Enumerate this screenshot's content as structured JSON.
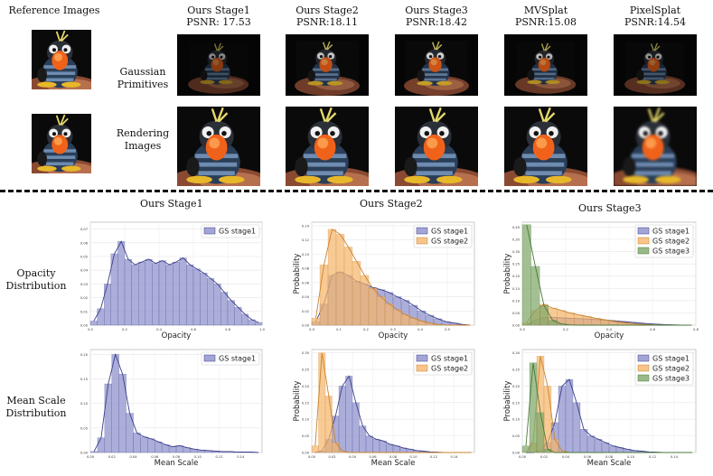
{
  "top": {
    "reference_label": "Reference Images",
    "columns": [
      {
        "name": "Ours Stage1",
        "psnr": "PSNR: 17.53"
      },
      {
        "name": "Ours Stage2",
        "psnr": "PSNR:18.11"
      },
      {
        "name": "Ours Stage3",
        "psnr": "PSNR:18.42"
      },
      {
        "name": "MVSplat",
        "psnr": "PSNR:15.08"
      },
      {
        "name": "PixelSplat",
        "psnr": "PSNR:14.54"
      }
    ],
    "rows": [
      {
        "line1": "Gaussian",
        "line2": "Primitives"
      },
      {
        "line1": "Rendering",
        "line2": "Images"
      }
    ]
  },
  "bottom": {
    "column_titles": [
      "Ours Stage1",
      "Ours Stage2",
      "Ours Stage3"
    ],
    "row_labels": [
      {
        "line1": "Opacity",
        "line2": "Distribution"
      },
      {
        "line1": "Mean Scale",
        "line2": "Distribution"
      }
    ]
  },
  "colors": {
    "stage1": "#8c8fcc",
    "stage2": "#f5b56b",
    "stage3": "#7fa86a"
  },
  "chart_data": [
    {
      "type": "histogram",
      "row": "opacity",
      "col": 1,
      "xlabel": "Opacity",
      "ylabel": "",
      "xlim": [
        0,
        1
      ],
      "ylim": [
        0,
        0.075
      ],
      "xticks": [
        "0.0",
        "0.2",
        "0.4",
        "0.6",
        "0.8",
        "1.0"
      ],
      "yticks": [
        "0.00",
        "0.01",
        "0.02",
        "0.03",
        "0.04",
        "0.05",
        "0.06",
        "0.07"
      ],
      "series": [
        {
          "name": "GS stage1",
          "values": [
            0.003,
            0.012,
            0.03,
            0.052,
            0.061,
            0.048,
            0.044,
            0.046,
            0.048,
            0.045,
            0.047,
            0.044,
            0.046,
            0.049,
            0.044,
            0.041,
            0.038,
            0.034,
            0.03,
            0.024,
            0.018,
            0.013,
            0.008,
            0.004,
            0.002
          ]
        }
      ]
    },
    {
      "type": "histogram",
      "row": "opacity",
      "col": 2,
      "xlabel": "Opacity",
      "ylabel": "Probability",
      "xlim": [
        0,
        0.6
      ],
      "ylim": [
        0,
        0.145
      ],
      "xticks": [
        "0.0",
        "0.1",
        "0.2",
        "0.3",
        "0.4",
        "0.5"
      ],
      "yticks": [
        "0.00",
        "0.02",
        "0.04",
        "0.06",
        "0.08",
        "0.10",
        "0.12",
        "0.14"
      ],
      "series": [
        {
          "name": "GS stage1",
          "values": [
            0.005,
            0.03,
            0.07,
            0.075,
            0.07,
            0.062,
            0.058,
            0.053,
            0.05,
            0.046,
            0.04,
            0.035,
            0.028,
            0.02,
            0.014,
            0.009,
            0.005,
            0.003,
            0.001,
            0.0
          ]
        },
        {
          "name": "GS stage2",
          "values": [
            0.01,
            0.085,
            0.135,
            0.128,
            0.11,
            0.09,
            0.07,
            0.052,
            0.04,
            0.03,
            0.022,
            0.015,
            0.01,
            0.006,
            0.003,
            0.001,
            0.0,
            0.0,
            0.0,
            0.0
          ]
        }
      ]
    },
    {
      "type": "histogram",
      "row": "opacity",
      "col": 3,
      "xlabel": "Opacity",
      "ylabel": "Probability",
      "xlim": [
        0,
        0.8
      ],
      "ylim": [
        0,
        0.42
      ],
      "xticks": [
        "0.0",
        "0.2",
        "0.4",
        "0.6",
        "0.8"
      ],
      "yticks": [
        "0.00",
        "0.05",
        "0.10",
        "0.15",
        "0.20",
        "0.25",
        "0.30",
        "0.35",
        "0.40"
      ],
      "series": [
        {
          "name": "GS stage1",
          "values": [
            0.002,
            0.02,
            0.03,
            0.032,
            0.03,
            0.028,
            0.027,
            0.025,
            0.023,
            0.021,
            0.018,
            0.015,
            0.012,
            0.009,
            0.006,
            0.004,
            0.002,
            0.001,
            0.0,
            0.0
          ]
        },
        {
          "name": "GS stage2",
          "values": [
            0.01,
            0.06,
            0.085,
            0.07,
            0.06,
            0.05,
            0.042,
            0.035,
            0.028,
            0.022,
            0.016,
            0.011,
            0.007,
            0.004,
            0.002,
            0.001,
            0.0,
            0.0,
            0.0,
            0.0
          ]
        },
        {
          "name": "GS stage3",
          "values": [
            0.41,
            0.24,
            0.08,
            0.02,
            0.005,
            0.001,
            0.0,
            0.0,
            0.0,
            0.0,
            0.0,
            0.0,
            0.0,
            0.0,
            0.0,
            0.0,
            0.0,
            0.0,
            0.0,
            0.0
          ]
        }
      ]
    },
    {
      "type": "histogram",
      "row": "scale",
      "col": 1,
      "xlabel": "Mean Scale",
      "ylabel": "",
      "xlim": [
        0,
        0.16
      ],
      "ylim": [
        0,
        0.21
      ],
      "xticks": [
        "0.00",
        "0.02",
        "0.04",
        "0.06",
        "0.08",
        "0.10",
        "0.12",
        "0.14"
      ],
      "yticks": [
        "0.00",
        "0.05",
        "0.10",
        "0.15",
        "0.20"
      ],
      "series": [
        {
          "name": "GS stage1",
          "values": [
            0.002,
            0.03,
            0.14,
            0.2,
            0.16,
            0.08,
            0.04,
            0.032,
            0.028,
            0.022,
            0.016,
            0.012,
            0.014,
            0.01,
            0.007,
            0.005,
            0.004,
            0.003,
            0.002,
            0.002,
            0.001,
            0.001,
            0.001,
            0.0
          ]
        }
      ]
    },
    {
      "type": "histogram",
      "row": "scale",
      "col": 2,
      "xlabel": "Mean Scale",
      "ylabel": "Probability",
      "xlim": [
        0,
        0.16
      ],
      "ylim": [
        0,
        0.31
      ],
      "xticks": [
        "0.00",
        "0.02",
        "0.04",
        "0.06",
        "0.08",
        "0.10",
        "0.12",
        "0.14"
      ],
      "yticks": [
        "0.00",
        "0.05",
        "0.10",
        "0.15",
        "0.20",
        "0.25",
        "0.30"
      ],
      "series": [
        {
          "name": "GS stage1",
          "values": [
            0.0,
            0.005,
            0.04,
            0.11,
            0.2,
            0.23,
            0.15,
            0.08,
            0.05,
            0.04,
            0.035,
            0.025,
            0.02,
            0.014,
            0.01,
            0.006,
            0.004,
            0.002,
            0.001,
            0.0,
            0.0,
            0.0,
            0.0,
            0.0
          ]
        },
        {
          "name": "GS stage2",
          "values": [
            0.02,
            0.3,
            0.17,
            0.03,
            0.005,
            0.0,
            0.0,
            0.0,
            0.0,
            0.0,
            0.0,
            0.0,
            0.0,
            0.0,
            0.0,
            0.0,
            0.0,
            0.0,
            0.0,
            0.0,
            0.0,
            0.0,
            0.0,
            0.0
          ]
        }
      ]
    },
    {
      "type": "histogram",
      "row": "scale",
      "col": 3,
      "xlabel": "Mean Scale",
      "ylabel": "Probability",
      "xlim": [
        0,
        0.16
      ],
      "ylim": [
        0,
        0.31
      ],
      "xticks": [
        "0.00",
        "0.02",
        "0.04",
        "0.06",
        "0.08",
        "0.10",
        "0.12",
        "0.14"
      ],
      "yticks": [
        "0.00",
        "0.05",
        "0.10",
        "0.15",
        "0.20",
        "0.25",
        "0.30"
      ],
      "series": [
        {
          "name": "GS stage1",
          "values": [
            0.0,
            0.0,
            0.005,
            0.03,
            0.09,
            0.2,
            0.22,
            0.15,
            0.07,
            0.05,
            0.04,
            0.03,
            0.02,
            0.015,
            0.01,
            0.006,
            0.004,
            0.002,
            0.001,
            0.0,
            0.0,
            0.0,
            0.0,
            0.0
          ]
        },
        {
          "name": "GS stage2",
          "values": [
            0.0,
            0.03,
            0.29,
            0.2,
            0.04,
            0.005,
            0.0,
            0.0,
            0.0,
            0.0,
            0.0,
            0.0,
            0.0,
            0.0,
            0.0,
            0.0,
            0.0,
            0.0,
            0.0,
            0.0,
            0.0,
            0.0,
            0.0,
            0.0
          ]
        },
        {
          "name": "GS stage3",
          "values": [
            0.02,
            0.27,
            0.12,
            0.01,
            0.0,
            0.0,
            0.0,
            0.0,
            0.0,
            0.0,
            0.0,
            0.0,
            0.0,
            0.0,
            0.0,
            0.0,
            0.0,
            0.0,
            0.0,
            0.0,
            0.0,
            0.0,
            0.0,
            0.0
          ]
        }
      ]
    }
  ]
}
